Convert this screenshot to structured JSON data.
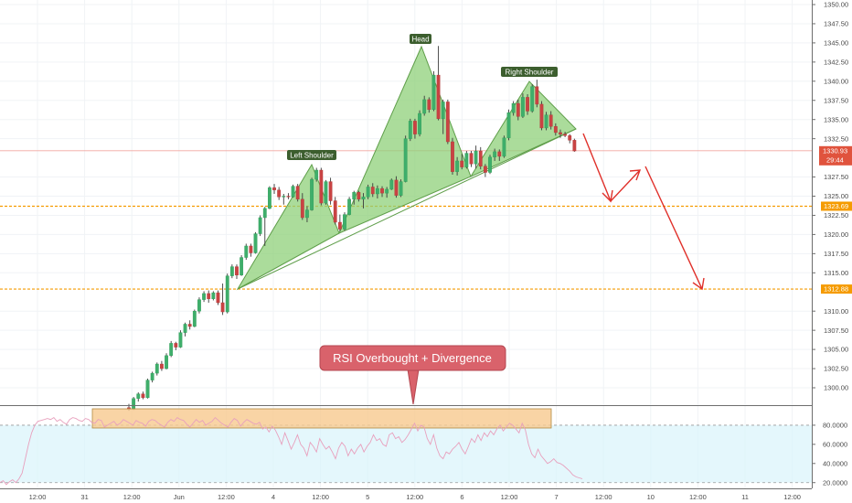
{
  "chart_data": [
    {
      "type": "candlestick",
      "price_axis": {
        "ticks": [
          "1350.00",
          "1347.50",
          "1345.00",
          "1342.50",
          "1340.00",
          "1337.50",
          "1335.00",
          "1332.50",
          "1327.50",
          "1325.00",
          "1322.50",
          "1320.00",
          "1317.50",
          "1315.00",
          "1310.00",
          "1307.50",
          "1305.00",
          "1302.50",
          "1300.00"
        ],
        "ylim": [
          1297.5,
          1351
        ]
      },
      "time_axis": {
        "ticks": [
          "12:00",
          "31",
          "12:00",
          "Jun",
          "12:00",
          "4",
          "12:00",
          "5",
          "12:00",
          "6",
          "12:00",
          "7",
          "12:00",
          "10",
          "12:00",
          "11",
          "12:00"
        ]
      },
      "current_price": {
        "value": "1330.93",
        "countdown": "29:44",
        "color": "#e0533d"
      },
      "levels": [
        {
          "value": 1323.69,
          "label": "1323.69",
          "color": "#f59b00"
        },
        {
          "value": 1312.88,
          "label": "1312.88",
          "color": "#f59b00"
        }
      ],
      "pattern": {
        "left_shoulder": "Left Shoulder",
        "head": "Head",
        "right_shoulder": "Right Shoulder",
        "fill_color": "#8fd07a"
      },
      "callout": "RSI Overbought + Divergence",
      "projection_color": "#e0302a",
      "candles": [
        [
          1297.4,
          1297.9,
          1297.0,
          1297.2
        ],
        [
          1297.2,
          1298.8,
          1297.1,
          1298.6
        ],
        [
          1298.6,
          1299.4,
          1298.2,
          1299.2
        ],
        [
          1299.2,
          1299.5,
          1298.5,
          1298.7
        ],
        [
          1298.7,
          1301.2,
          1298.6,
          1301.0
        ],
        [
          1301.0,
          1302.1,
          1300.7,
          1301.9
        ],
        [
          1301.9,
          1303.3,
          1301.6,
          1303.1
        ],
        [
          1303.1,
          1303.5,
          1302.2,
          1302.5
        ],
        [
          1302.5,
          1304.5,
          1302.4,
          1304.2
        ],
        [
          1304.2,
          1306.1,
          1304.0,
          1305.8
        ],
        [
          1305.8,
          1306.0,
          1304.9,
          1305.3
        ],
        [
          1305.3,
          1307.5,
          1305.2,
          1307.2
        ],
        [
          1307.2,
          1308.5,
          1306.7,
          1308.3
        ],
        [
          1308.3,
          1308.8,
          1307.6,
          1308.0
        ],
        [
          1308.0,
          1310.2,
          1307.9,
          1310.0
        ],
        [
          1310.0,
          1311.8,
          1309.7,
          1311.5
        ],
        [
          1311.5,
          1312.6,
          1311.2,
          1312.3
        ],
        [
          1312.3,
          1312.7,
          1311.1,
          1311.6
        ],
        [
          1311.6,
          1312.6,
          1311.4,
          1312.4
        ],
        [
          1312.4,
          1312.7,
          1310.8,
          1311.1
        ],
        [
          1311.1,
          1313.6,
          1309.5,
          1309.9
        ],
        [
          1309.9,
          1314.9,
          1309.7,
          1314.6
        ],
        [
          1314.6,
          1316.1,
          1314.3,
          1315.8
        ],
        [
          1315.8,
          1316.1,
          1314.2,
          1314.7
        ],
        [
          1314.7,
          1317.3,
          1314.6,
          1317.0
        ],
        [
          1317.0,
          1318.8,
          1316.7,
          1318.5
        ],
        [
          1318.5,
          1318.8,
          1317.1,
          1317.6
        ],
        [
          1317.6,
          1320.3,
          1317.5,
          1320.1
        ],
        [
          1320.1,
          1322.5,
          1319.8,
          1322.2
        ],
        [
          1322.2,
          1323.6,
          1318.5,
          1323.4
        ],
        [
          1323.4,
          1326.3,
          1323.3,
          1326.1
        ],
        [
          1326.1,
          1326.6,
          1325.3,
          1325.8
        ],
        [
          1325.8,
          1326.2,
          1324.5,
          1324.9
        ],
        [
          1324.9,
          1325.3,
          1323.9,
          1325.0
        ],
        [
          1325.0,
          1325.4,
          1324.6,
          1324.9
        ],
        [
          1324.9,
          1326.5,
          1324.8,
          1326.3
        ],
        [
          1326.3,
          1326.6,
          1324.3,
          1324.6
        ],
        [
          1324.6,
          1325.4,
          1321.9,
          1322.2
        ],
        [
          1322.2,
          1323.7,
          1321.6,
          1323.2
        ],
        [
          1323.2,
          1327.4,
          1323.1,
          1327.2
        ],
        [
          1327.2,
          1328.7,
          1326.9,
          1328.4
        ],
        [
          1328.4,
          1328.7,
          1323.8,
          1324.1
        ],
        [
          1324.1,
          1327.1,
          1323.9,
          1326.9
        ],
        [
          1326.9,
          1327.4,
          1323.9,
          1324.4
        ],
        [
          1324.4,
          1324.9,
          1321.3,
          1321.6
        ],
        [
          1321.6,
          1322.6,
          1320.4,
          1320.7
        ],
        [
          1320.7,
          1322.9,
          1320.5,
          1322.6
        ],
        [
          1322.6,
          1324.9,
          1322.5,
          1324.6
        ],
        [
          1324.6,
          1325.7,
          1323.9,
          1325.5
        ],
        [
          1325.5,
          1325.7,
          1324.3,
          1324.6
        ],
        [
          1324.6,
          1325.4,
          1323.4,
          1324.9
        ],
        [
          1324.9,
          1326.5,
          1324.6,
          1326.2
        ],
        [
          1326.2,
          1326.7,
          1324.9,
          1325.3
        ],
        [
          1325.3,
          1326.4,
          1324.7,
          1326.0
        ],
        [
          1326.0,
          1326.3,
          1324.9,
          1325.4
        ],
        [
          1325.4,
          1326.2,
          1324.8,
          1325.9
        ],
        [
          1325.9,
          1327.3,
          1325.8,
          1327.1
        ],
        [
          1327.1,
          1327.6,
          1324.8,
          1325.1
        ],
        [
          1325.1,
          1327.2,
          1324.9,
          1326.9
        ],
        [
          1326.9,
          1332.9,
          1326.8,
          1332.5
        ],
        [
          1332.5,
          1335.1,
          1332.2,
          1334.8
        ],
        [
          1334.8,
          1335.1,
          1332.5,
          1333.1
        ],
        [
          1333.1,
          1336.2,
          1332.8,
          1335.8
        ],
        [
          1335.8,
          1338.1,
          1335.5,
          1337.6
        ],
        [
          1337.6,
          1337.9,
          1335.9,
          1336.3
        ],
        [
          1336.3,
          1341.3,
          1336.1,
          1340.8
        ],
        [
          1340.8,
          1344.6,
          1334.9,
          1335.1
        ],
        [
          1335.1,
          1337.6,
          1333.1,
          1337.3
        ],
        [
          1337.3,
          1337.6,
          1331.8,
          1332.1
        ],
        [
          1332.1,
          1332.6,
          1327.8,
          1328.2
        ],
        [
          1328.2,
          1330.1,
          1327.7,
          1329.6
        ],
        [
          1329.6,
          1330.5,
          1328.5,
          1328.8
        ],
        [
          1328.8,
          1330.9,
          1328.6,
          1330.6
        ],
        [
          1330.6,
          1330.9,
          1328.8,
          1329.2
        ],
        [
          1329.2,
          1331.6,
          1328.6,
          1330.9
        ],
        [
          1330.9,
          1331.4,
          1328.5,
          1328.9
        ],
        [
          1328.9,
          1329.2,
          1327.5,
          1328.1
        ],
        [
          1328.1,
          1330.4,
          1327.9,
          1330.1
        ],
        [
          1330.1,
          1331.2,
          1329.6,
          1330.8
        ],
        [
          1330.8,
          1331.1,
          1329.6,
          1330.2
        ],
        [
          1330.2,
          1332.9,
          1330.0,
          1332.6
        ],
        [
          1332.6,
          1336.3,
          1332.3,
          1335.9
        ],
        [
          1335.9,
          1337.4,
          1335.5,
          1337.1
        ],
        [
          1337.1,
          1337.6,
          1334.9,
          1335.4
        ],
        [
          1335.4,
          1338.4,
          1335.2,
          1337.9
        ],
        [
          1337.9,
          1338.3,
          1335.6,
          1336.1
        ],
        [
          1336.1,
          1339.6,
          1335.9,
          1339.3
        ],
        [
          1339.3,
          1340.2,
          1336.6,
          1337.0
        ],
        [
          1337.0,
          1337.4,
          1333.6,
          1333.9
        ],
        [
          1333.9,
          1336.0,
          1333.6,
          1335.6
        ],
        [
          1335.6,
          1336.1,
          1333.7,
          1334.1
        ],
        [
          1334.1,
          1334.5,
          1332.9,
          1333.3
        ],
        [
          1333.3,
          1333.7,
          1332.6,
          1333.1
        ],
        [
          1333.1,
          1333.4,
          1332.7,
          1332.9
        ],
        [
          1332.9,
          1333.1,
          1331.9,
          1332.3
        ],
        [
          1332.3,
          1332.5,
          1330.8,
          1330.9
        ]
      ],
      "rsi": {
        "ticks": [
          "80.0000",
          "60.0000",
          "40.0000",
          "20.0000"
        ],
        "ylim": [
          14,
          100
        ],
        "overbought": 80,
        "oversold": 20,
        "values": [
          20,
          22,
          18,
          21,
          23,
          20,
          24,
          30,
          45,
          60,
          72,
          80,
          84,
          85,
          86,
          87,
          86,
          88,
          84,
          86,
          83,
          81,
          86,
          88,
          87,
          85,
          84,
          87,
          86,
          83,
          82,
          86,
          85,
          78,
          80,
          82,
          84,
          80,
          82,
          86,
          84,
          82,
          80,
          85,
          83,
          82,
          79,
          84,
          86,
          85,
          82,
          80,
          78,
          83,
          86,
          84,
          88,
          86,
          85,
          81,
          78,
          82,
          86,
          83,
          85,
          80,
          82,
          84,
          88,
          85,
          82,
          80,
          78,
          83,
          87,
          85,
          79,
          83,
          86,
          84,
          82,
          81,
          83,
          76,
          78,
          73,
          79,
          75,
          68,
          60,
          72,
          64,
          55,
          62,
          70,
          60,
          56,
          48,
          62,
          58,
          52,
          66,
          60,
          55,
          58,
          52,
          45,
          56,
          62,
          58,
          48,
          55,
          50,
          56,
          60,
          52,
          58,
          62,
          70,
          64,
          66,
          60,
          58,
          70,
          72,
          66,
          68,
          62,
          65,
          70,
          76,
          82,
          74,
          80,
          78,
          66,
          60,
          70,
          56,
          48,
          45,
          52,
          50,
          55,
          58,
          62,
          55,
          50,
          58,
          66,
          62,
          70,
          64,
          72,
          68,
          74,
          70,
          76,
          80,
          74,
          78,
          82,
          80,
          76,
          72,
          82,
          75,
          60,
          50,
          46,
          55,
          48,
          44,
          40,
          42,
          45,
          41,
          40,
          38,
          35,
          32,
          28,
          26,
          25,
          24
        ]
      }
    }
  ]
}
